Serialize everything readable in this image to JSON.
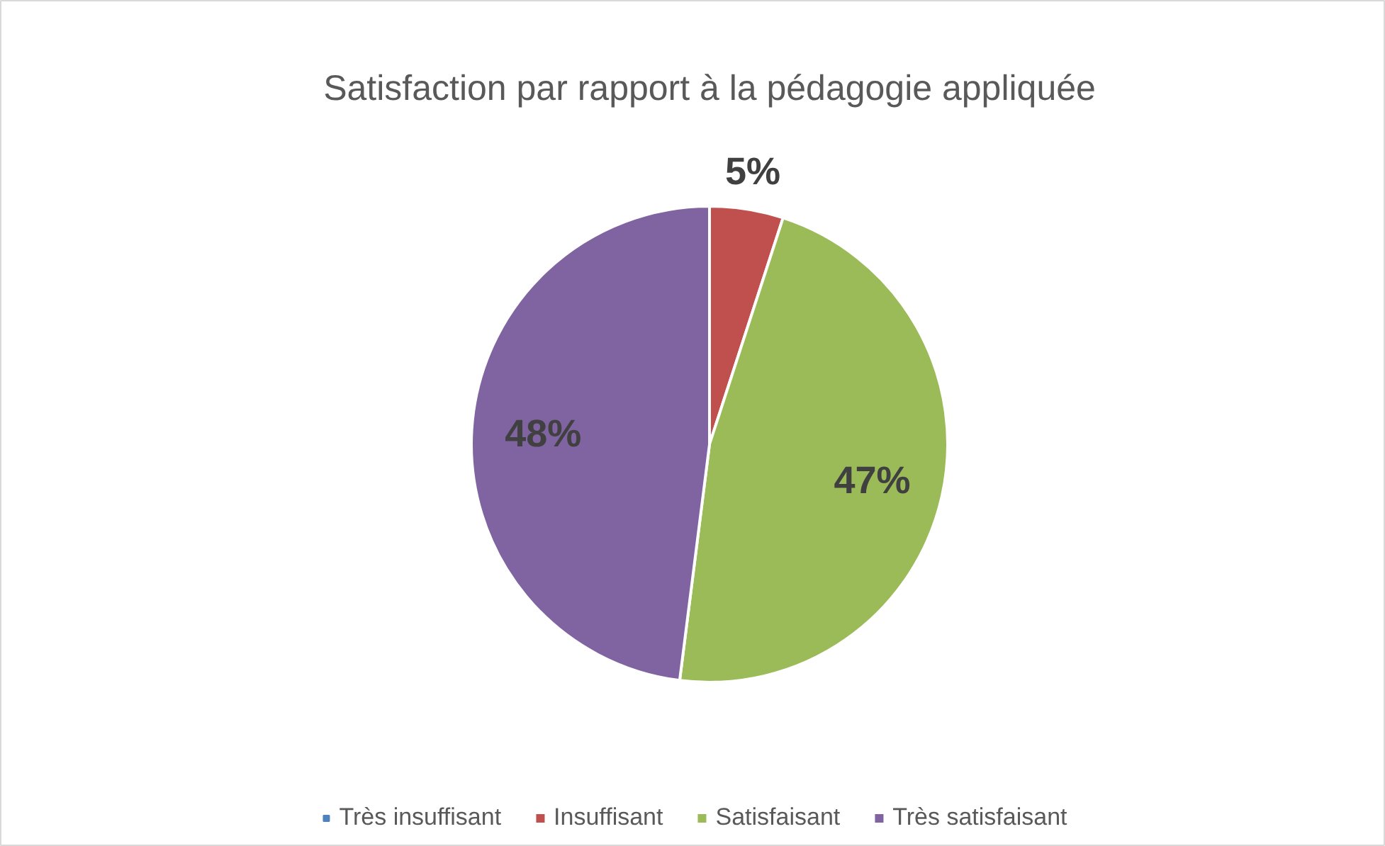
{
  "chart_data": {
    "type": "pie",
    "title": "Satisfaction par rapport à la pédagogie appliquée",
    "categories": [
      "Très insuffisant",
      "Insuffisant",
      "Satisfaisant",
      "Très satisfaisant"
    ],
    "values": [
      0,
      5,
      47,
      48
    ],
    "colors": [
      "#4f81bd",
      "#c0504d",
      "#9bbb59",
      "#8064a2"
    ],
    "value_labels": [
      null,
      "5%",
      "47%",
      "48%"
    ],
    "legend": "bottom"
  }
}
